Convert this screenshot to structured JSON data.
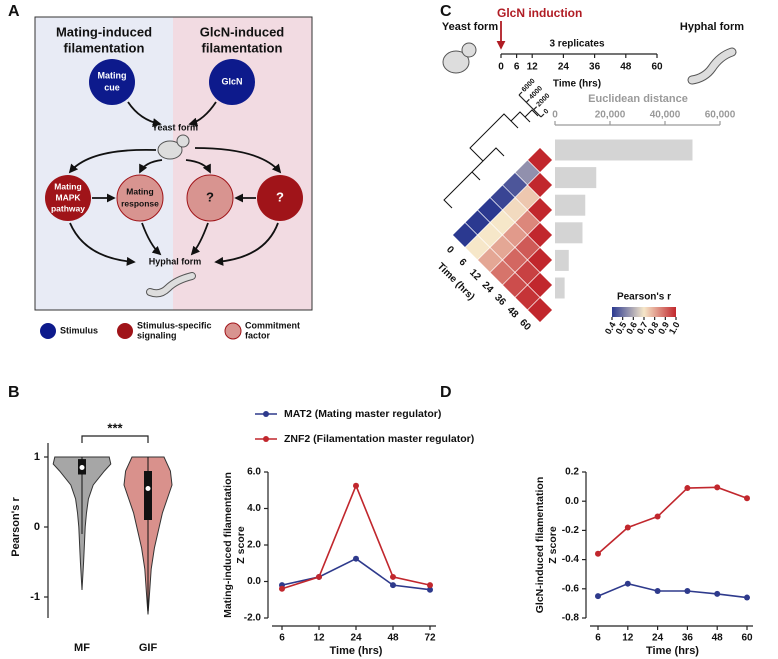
{
  "panel_labels": [
    "A",
    "B",
    "C",
    "D"
  ],
  "diagram": {
    "headers": [
      [
        "Mating-induced",
        "filamentation"
      ],
      [
        "GlcN-induced",
        "filamentation"
      ]
    ],
    "nodes": [
      {
        "label": [
          "Mating",
          "cue"
        ]
      },
      {
        "label": [
          "GlcN"
        ]
      },
      {
        "label": [
          "Yeast form"
        ]
      },
      {
        "label": [
          "Mating",
          "MAPK",
          "pathway"
        ]
      },
      {
        "label": [
          "Mating",
          "response"
        ]
      },
      {
        "label": [
          "?"
        ]
      },
      {
        "label": [
          "?"
        ]
      },
      {
        "label": [
          "Hyphal form"
        ]
      }
    ],
    "legend": [
      {
        "label": [
          "Stimulus"
        ]
      },
      {
        "label": [
          "Stimulus-specific",
          "signaling"
        ]
      },
      {
        "label": [
          "Commitment",
          "factor"
        ]
      }
    ]
  },
  "chart_data": [
    {
      "type": "violin",
      "ylabel": "Pearson's r",
      "categories": [
        "MF",
        "GIF"
      ],
      "ylim": [
        -1.3,
        1.2
      ],
      "yticks": [
        -1,
        0,
        1
      ],
      "significance": "***",
      "violins": [
        {
          "color": "#a6a6a6",
          "kde_y": [
            -0.9,
            -0.5,
            0,
            0.2,
            0.4,
            0.6,
            0.8,
            0.9,
            1.0
          ],
          "kde_width": [
            0,
            0.05,
            0.1,
            0.14,
            0.2,
            0.35,
            0.7,
            0.9,
            0.85
          ],
          "median": 0.85,
          "q1": 0.75,
          "q3": 0.97,
          "whisker_low": -0.1,
          "whisker_high": 1.0
        },
        {
          "color": "#d9918c",
          "kde_y": [
            -1.25,
            -1,
            -0.6,
            -0.3,
            0,
            0.2,
            0.4,
            0.6,
            0.8,
            1.0
          ],
          "kde_width": [
            0,
            0.04,
            0.1,
            0.2,
            0.35,
            0.45,
            0.6,
            0.75,
            0.7,
            0.5
          ],
          "median": 0.55,
          "q1": 0.1,
          "q3": 0.8,
          "whisker_low": -1.2,
          "whisker_high": 1.0
        }
      ]
    },
    {
      "type": "timeline",
      "title": "GlcN induction",
      "start_label": "Yeast form",
      "end_label": "Hyphal form",
      "note": "3 replicates",
      "xlabel": "Time (hrs)",
      "xlim": [
        0,
        60
      ],
      "xticks": [
        0,
        6,
        12,
        24,
        36,
        48,
        60
      ],
      "color": "#b01c24"
    },
    {
      "type": "heatmap",
      "categories": [
        0,
        6,
        12,
        24,
        36,
        48,
        60
      ],
      "xlabel": "Time (hrs)",
      "matrix": [
        [
          1.0
        ],
        [
          0.55,
          1.0
        ],
        [
          0.45,
          0.75,
          1.0
        ],
        [
          0.42,
          0.72,
          0.85,
          1.0
        ],
        [
          0.4,
          0.7,
          0.82,
          0.92,
          1.0
        ],
        [
          0.4,
          0.7,
          0.8,
          0.9,
          0.96,
          1.0
        ],
        [
          0.4,
          0.7,
          0.8,
          0.88,
          0.94,
          0.98,
          1.0
        ]
      ],
      "colorbar_title": "Pearson's r",
      "clim": [
        0.4,
        1.0
      ],
      "colorbar_ticks": [
        0.4,
        0.5,
        0.6,
        0.7,
        0.8,
        0.9,
        {
          "value": 1.0,
          "label": "1.0"
        }
      ],
      "colors": [
        "#2b3990",
        "#f6e7c9",
        "#c1272d"
      ],
      "dendrogram_ticks": [
        0,
        2000,
        4000,
        6000
      ]
    },
    {
      "type": "bar",
      "orientation": "horizontal",
      "title": "Euclidean distance",
      "values": [
        50000,
        15000,
        11000,
        10000,
        5000,
        3500
      ],
      "color": "#d4d4d4",
      "xlim": [
        0,
        60000
      ],
      "xticks": [
        0,
        {
          "value": 20000,
          "label": "20,000"
        },
        {
          "value": 40000,
          "label": "40,000"
        },
        {
          "value": 60000,
          "label": "60,000"
        }
      ]
    },
    {
      "type": "line",
      "ylabel": [
        "Mating-induced filamentation",
        "Z score"
      ],
      "xlabel": "Time (hrs)",
      "categories": [
        "6",
        "12",
        "24",
        "48",
        "72"
      ],
      "ylim": [
        -2,
        6
      ],
      "yticks": [
        {
          "value": -2,
          "label": "-2.0"
        },
        {
          "value": 0,
          "label": "0.0"
        },
        {
          "value": 2,
          "label": "2.0"
        },
        {
          "value": 4,
          "label": "4.0"
        },
        {
          "value": 6,
          "label": "6.0"
        }
      ],
      "series": [
        {
          "name": "MAT2 (Mating master regulator)",
          "color": "#2e3a8c",
          "values": [
            -0.2,
            0.25,
            1.25,
            -0.2,
            -0.45
          ]
        },
        {
          "name": "ZNF2 (Filamentation master regulator)",
          "color": "#c1272d",
          "values": [
            -0.4,
            0.25,
            5.25,
            0.25,
            -0.2
          ]
        }
      ]
    },
    {
      "type": "line",
      "ylabel": [
        "GlcN-induced filamentation",
        "Z score"
      ],
      "xlabel": "Time (hrs)",
      "categories": [
        "6",
        "12",
        "24",
        "36",
        "48",
        "60"
      ],
      "ylim": [
        -0.8,
        0.2
      ],
      "yticks": [
        -0.8,
        -0.6,
        -0.4,
        -0.2,
        {
          "value": 0,
          "label": "0.0"
        },
        0.2
      ],
      "series": [
        {
          "color": "#2e3a8c",
          "values": [
            -0.65,
            -0.565,
            -0.615,
            -0.615,
            -0.635,
            -0.66
          ]
        },
        {
          "color": "#c1272d",
          "values": [
            -0.36,
            -0.18,
            -0.105,
            0.09,
            0.095,
            0.02
          ]
        }
      ]
    }
  ]
}
